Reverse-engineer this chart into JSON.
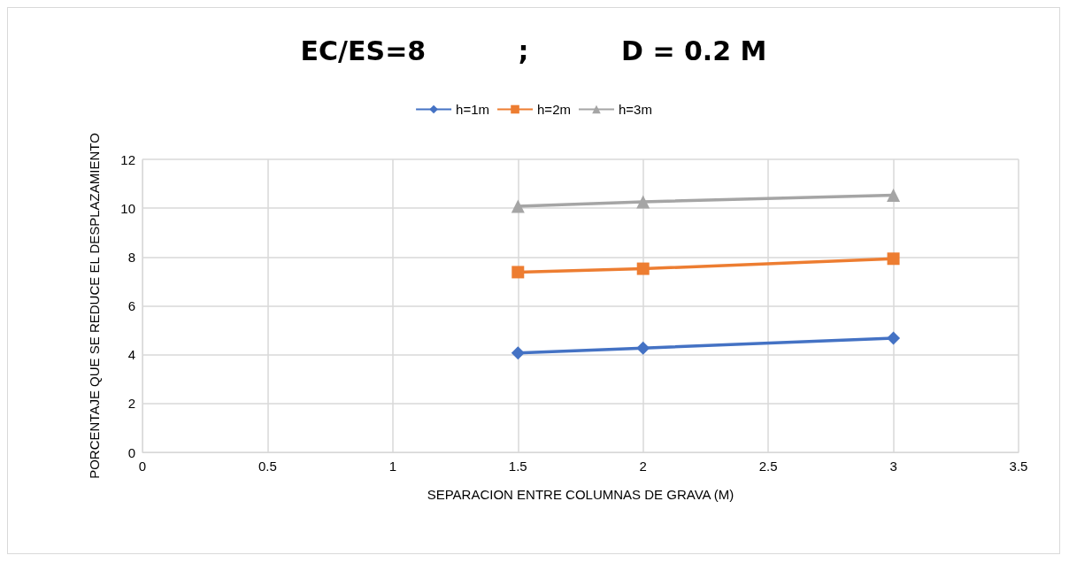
{
  "chart_data": {
    "type": "line",
    "title": "EC/ES=8          ;          D = 0.2 M",
    "xlabel": "SEPARACION ENTRE COLUMNAS DE GRAVA (M)",
    "ylabel": "PORCENTAJE QUE SE REDUCE EL DESPLAZAMIENTO",
    "x": [
      1.5,
      2,
      3
    ],
    "series": [
      {
        "name": "h=1m",
        "color": "#4472c4",
        "marker": "diamond",
        "values": [
          4.07,
          4.27,
          4.68
        ]
      },
      {
        "name": "h=2m",
        "color": "#ed7d31",
        "marker": "square",
        "values": [
          7.38,
          7.52,
          7.93
        ]
      },
      {
        "name": "h=3m",
        "color": "#a5a5a5",
        "marker": "triangle",
        "values": [
          10.08,
          10.26,
          10.53
        ]
      }
    ],
    "xlim": [
      0,
      3.5
    ],
    "xticks": [
      0,
      0.5,
      1,
      1.5,
      2,
      2.5,
      3,
      3.5
    ],
    "ylim": [
      0,
      12
    ],
    "yticks": [
      0,
      2,
      4,
      6,
      8,
      10,
      12
    ],
    "grid": true,
    "legend": "top",
    "line_style": "solid"
  }
}
